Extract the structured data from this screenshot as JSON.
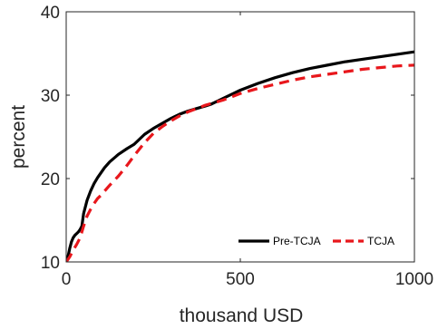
{
  "chart_data": {
    "type": "line",
    "title": "",
    "xlabel": "thousand USD",
    "ylabel": "percent",
    "xlim": [
      0,
      1000
    ],
    "ylim": [
      10,
      40
    ],
    "xticks": [
      0,
      500,
      1000
    ],
    "yticks": [
      10,
      20,
      30,
      40
    ],
    "xtick_labels": [
      "0",
      "500",
      "1000"
    ],
    "ytick_labels": [
      "10",
      "20",
      "30",
      "40"
    ],
    "grid": false,
    "legend_position": "bottom-right",
    "series": [
      {
        "name": "Pre-TCJA",
        "color": "#000000",
        "dash": "solid",
        "points": [
          [
            0,
            10.0
          ],
          [
            5,
            10.6
          ],
          [
            10,
            11.6
          ],
          [
            15,
            12.4
          ],
          [
            20,
            12.9
          ],
          [
            25,
            13.2
          ],
          [
            30,
            13.4
          ],
          [
            35,
            13.6
          ],
          [
            40,
            13.9
          ],
          [
            45,
            14.3
          ],
          [
            50,
            15.8
          ],
          [
            60,
            17.4
          ],
          [
            70,
            18.5
          ],
          [
            80,
            19.4
          ],
          [
            90,
            20.1
          ],
          [
            100,
            20.7
          ],
          [
            110,
            21.3
          ],
          [
            125,
            22.0
          ],
          [
            150,
            22.9
          ],
          [
            175,
            23.6
          ],
          [
            195,
            24.1
          ],
          [
            210,
            24.7
          ],
          [
            225,
            25.3
          ],
          [
            250,
            26.0
          ],
          [
            275,
            26.6
          ],
          [
            300,
            27.2
          ],
          [
            325,
            27.7
          ],
          [
            350,
            28.1
          ],
          [
            375,
            28.4
          ],
          [
            400,
            28.7
          ],
          [
            415,
            28.9
          ],
          [
            425,
            29.1
          ],
          [
            450,
            29.6
          ],
          [
            500,
            30.6
          ],
          [
            550,
            31.4
          ],
          [
            600,
            32.1
          ],
          [
            650,
            32.7
          ],
          [
            700,
            33.2
          ],
          [
            750,
            33.6
          ],
          [
            800,
            34.0
          ],
          [
            850,
            34.3
          ],
          [
            900,
            34.6
          ],
          [
            950,
            34.9
          ],
          [
            1000,
            35.2
          ]
        ]
      },
      {
        "name": "TCJA",
        "color": "#e8171c",
        "dash": "dashed",
        "points": [
          [
            0,
            10.0
          ],
          [
            10,
            10.6
          ],
          [
            20,
            11.4
          ],
          [
            30,
            12.1
          ],
          [
            40,
            12.9
          ],
          [
            50,
            14.3
          ],
          [
            60,
            15.5
          ],
          [
            70,
            16.3
          ],
          [
            80,
            17.0
          ],
          [
            90,
            17.6
          ],
          [
            100,
            18.0
          ],
          [
            125,
            19.2
          ],
          [
            150,
            20.3
          ],
          [
            175,
            21.6
          ],
          [
            200,
            23.0
          ],
          [
            225,
            24.3
          ],
          [
            250,
            25.4
          ],
          [
            275,
            26.2
          ],
          [
            300,
            26.9
          ],
          [
            325,
            27.5
          ],
          [
            350,
            28.0
          ],
          [
            375,
            28.4
          ],
          [
            400,
            28.8
          ],
          [
            425,
            29.1
          ],
          [
            450,
            29.4
          ],
          [
            500,
            30.2
          ],
          [
            550,
            30.8
          ],
          [
            600,
            31.3
          ],
          [
            650,
            31.8
          ],
          [
            700,
            32.2
          ],
          [
            750,
            32.5
          ],
          [
            800,
            32.8
          ],
          [
            850,
            33.1
          ],
          [
            900,
            33.3
          ],
          [
            950,
            33.5
          ],
          [
            1000,
            33.6
          ]
        ]
      }
    ]
  }
}
